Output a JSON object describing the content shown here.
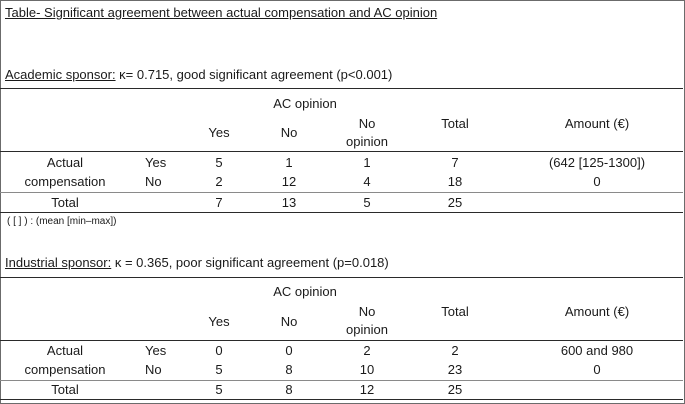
{
  "title": "Table- Significant agreement between actual compensation and AC opinion",
  "sections": [
    {
      "sponsor_label": "Academic sponsor:",
      "stat_text": " κ= 0.715, good significant agreement (p<0.001)",
      "group_header": "AC opinion",
      "columns": {
        "yes": "Yes",
        "no": "No",
        "noop1": "No",
        "noop2": "opinion",
        "total": "Total",
        "amount": "Amount (€)"
      },
      "row_label_1": "Actual",
      "row_label_2": "compensation",
      "rows": [
        {
          "label": "Yes",
          "yes": "5",
          "no": "1",
          "noop": "1",
          "total": "7",
          "amount": "(642 [125-1300])"
        },
        {
          "label": "No",
          "yes": "2",
          "no": "12",
          "noop": "4",
          "total": "18",
          "amount": "0"
        }
      ],
      "total_row": {
        "label": "Total",
        "yes": "7",
        "no": "13",
        "noop": "5",
        "total": "25"
      },
      "note": "( [ ] ) : (mean [min–max])"
    },
    {
      "sponsor_label": "Industrial sponsor:",
      "stat_text": " κ = 0.365, poor significant agreement (p=0.018)",
      "group_header": "AC opinion",
      "columns": {
        "yes": "Yes",
        "no": "No",
        "noop1": "No",
        "noop2": "opinion",
        "total": "Total",
        "amount": "Amount (€)"
      },
      "row_label_1": "Actual",
      "row_label_2": "compensation",
      "rows": [
        {
          "label": "Yes",
          "yes": "0",
          "no": "0",
          "noop": "2",
          "total": "2",
          "amount": "600 and 980"
        },
        {
          "label": "No",
          "yes": "5",
          "no": "8",
          "noop": "10",
          "total": "23",
          "amount": "0"
        }
      ],
      "total_row": {
        "label": "Total",
        "yes": "5",
        "no": "8",
        "noop": "12",
        "total": "25"
      }
    }
  ]
}
